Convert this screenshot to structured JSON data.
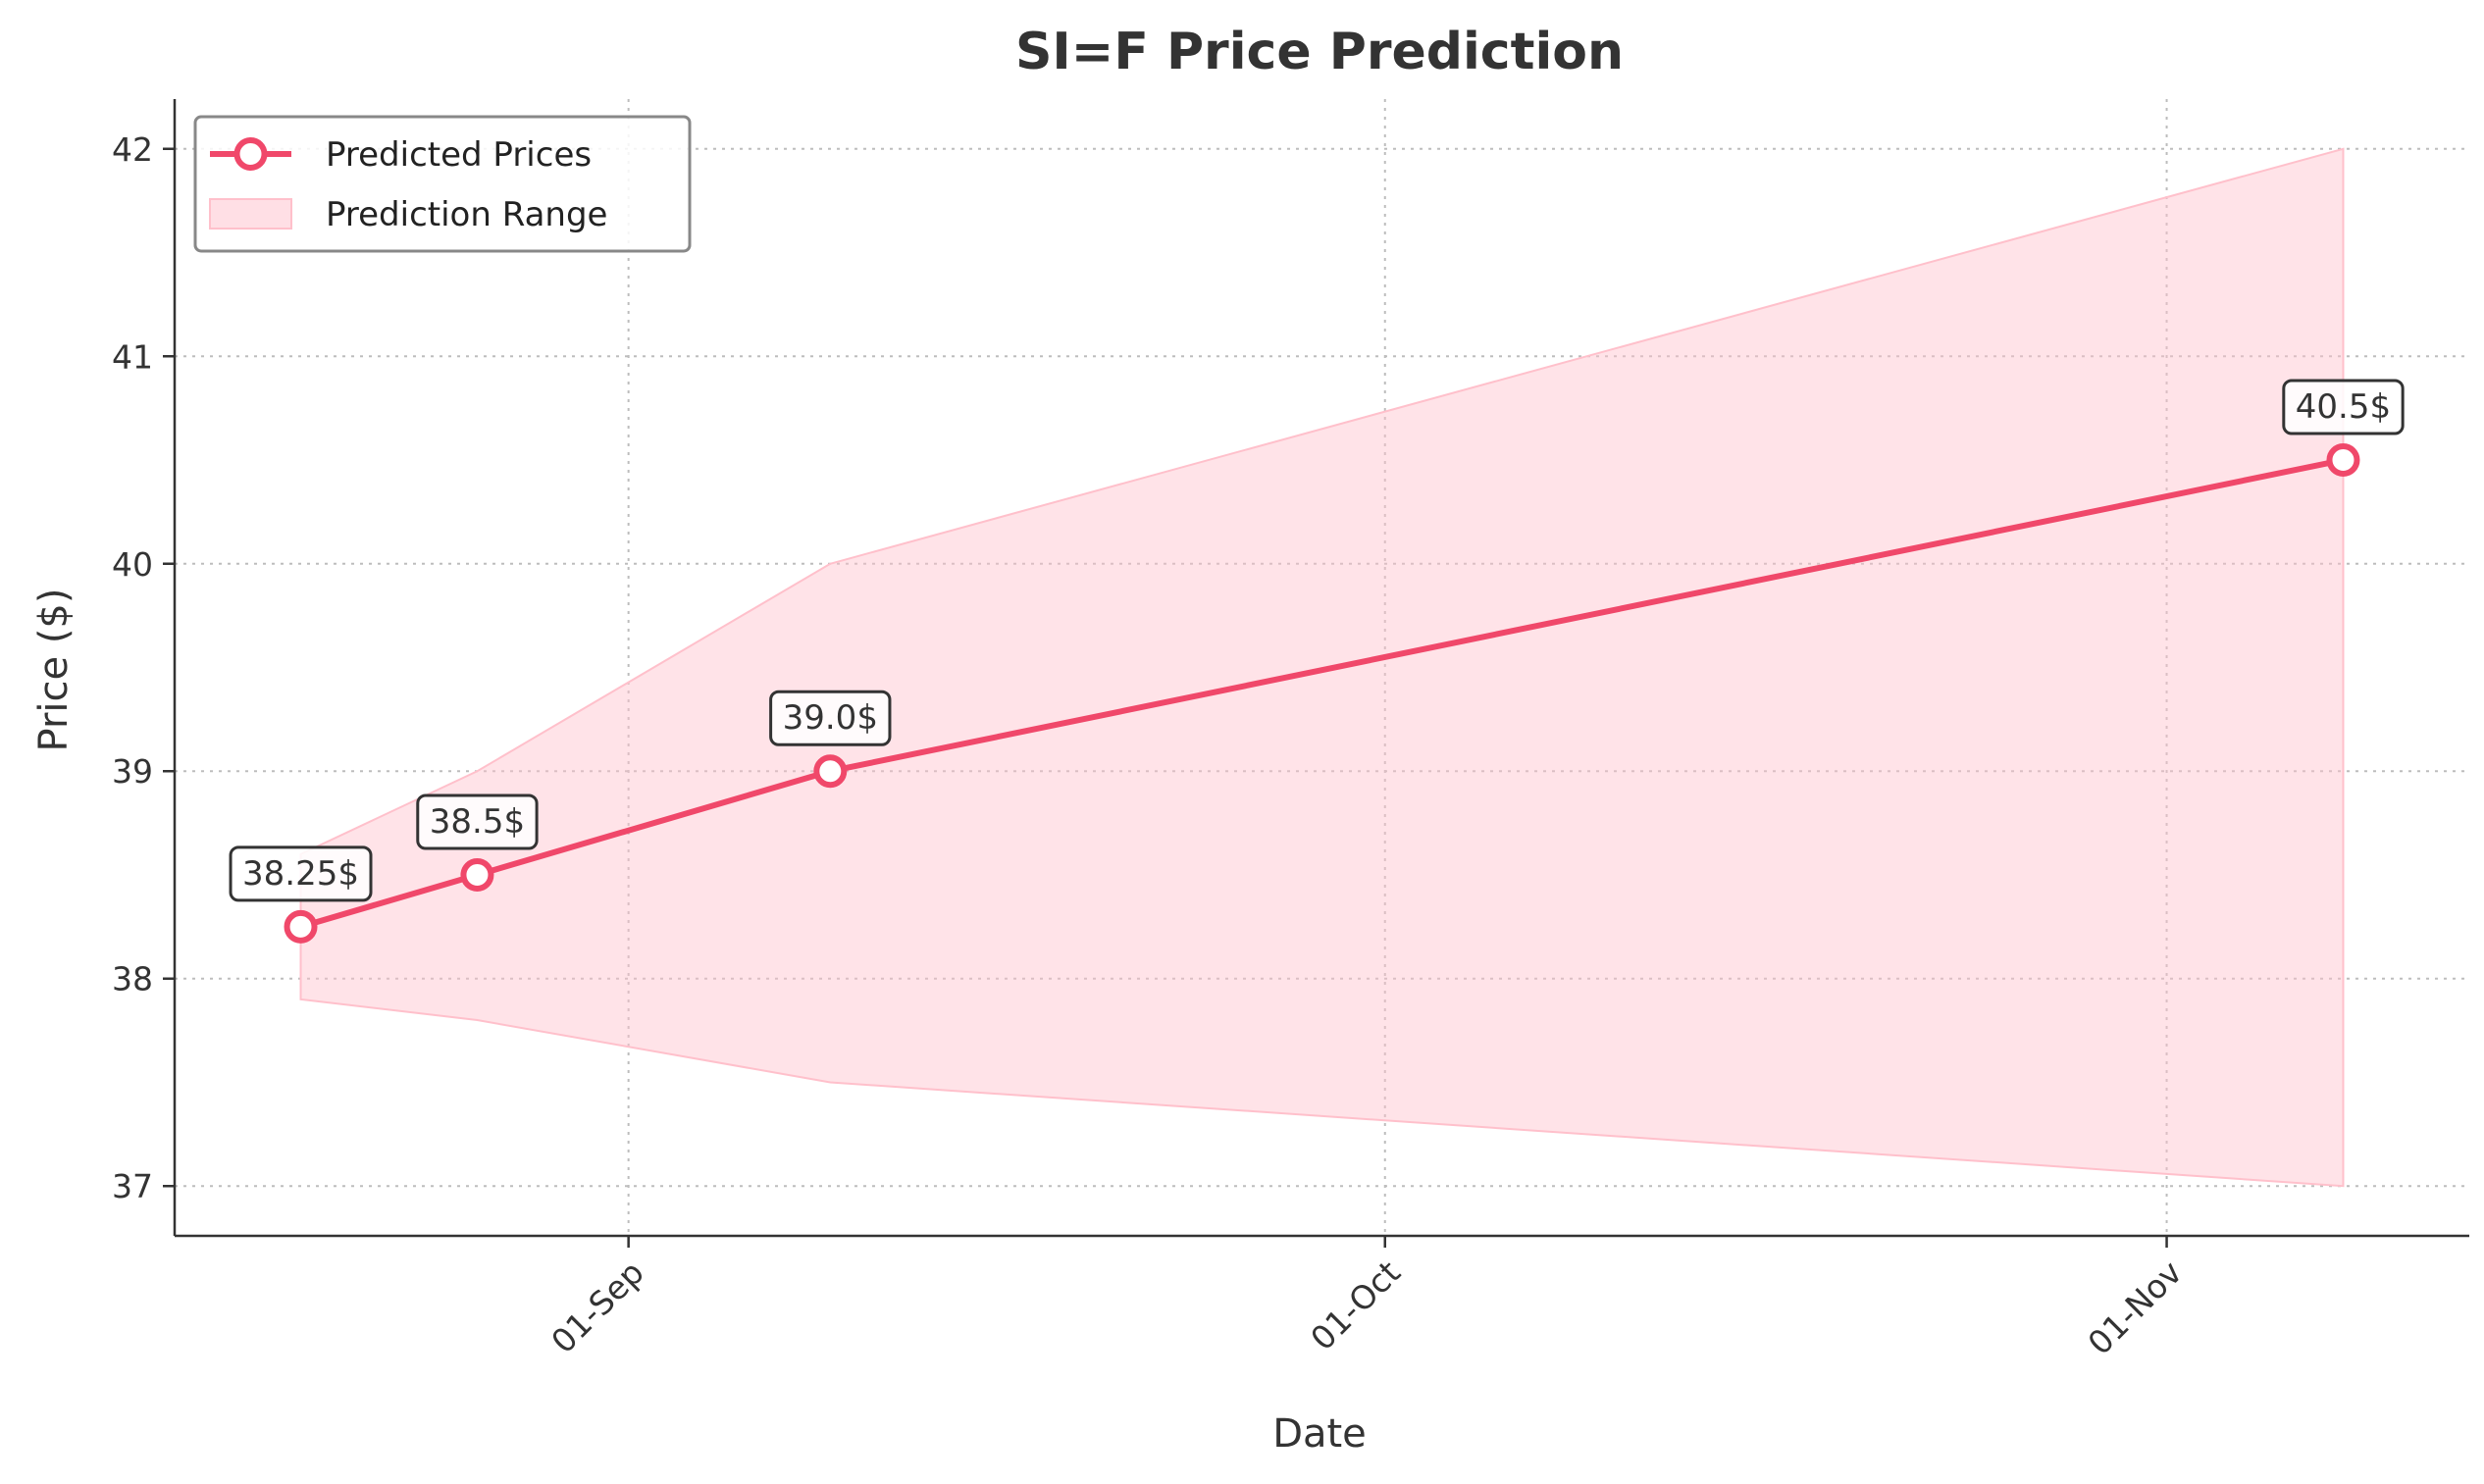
{
  "chart_data": {
    "type": "line",
    "title": "SI=F Price Prediction",
    "xlabel": "Date",
    "ylabel": "Price ($)",
    "x": [
      "2024-08-19",
      "2024-08-26",
      "2024-09-09",
      "2024-11-08"
    ],
    "series": [
      {
        "name": "Predicted Prices",
        "values": [
          38.25,
          38.5,
          39.0,
          40.5
        ],
        "color": "#f0486a"
      }
    ],
    "range": {
      "name": "Prediction Range",
      "color": "#ffc0cb",
      "lower": [
        37.9,
        37.8,
        37.5,
        37.0
      ],
      "upper": [
        38.6,
        39.0,
        40.0,
        42.0
      ]
    },
    "data_labels": [
      "38.25$",
      "38.5$",
      "39.0$",
      "40.5$"
    ],
    "xticks": [
      {
        "date": "2024-09-01",
        "label": "01-Sep"
      },
      {
        "date": "2024-10-01",
        "label": "01-Oct"
      },
      {
        "date": "2024-11-01",
        "label": "01-Nov"
      }
    ],
    "yticks": [
      37,
      38,
      39,
      40,
      41,
      42
    ],
    "xlim": [
      "2024-08-14",
      "2024-11-13"
    ],
    "ylim": [
      36.76,
      42.24
    ],
    "grid": true,
    "legend_position": "top-left"
  }
}
